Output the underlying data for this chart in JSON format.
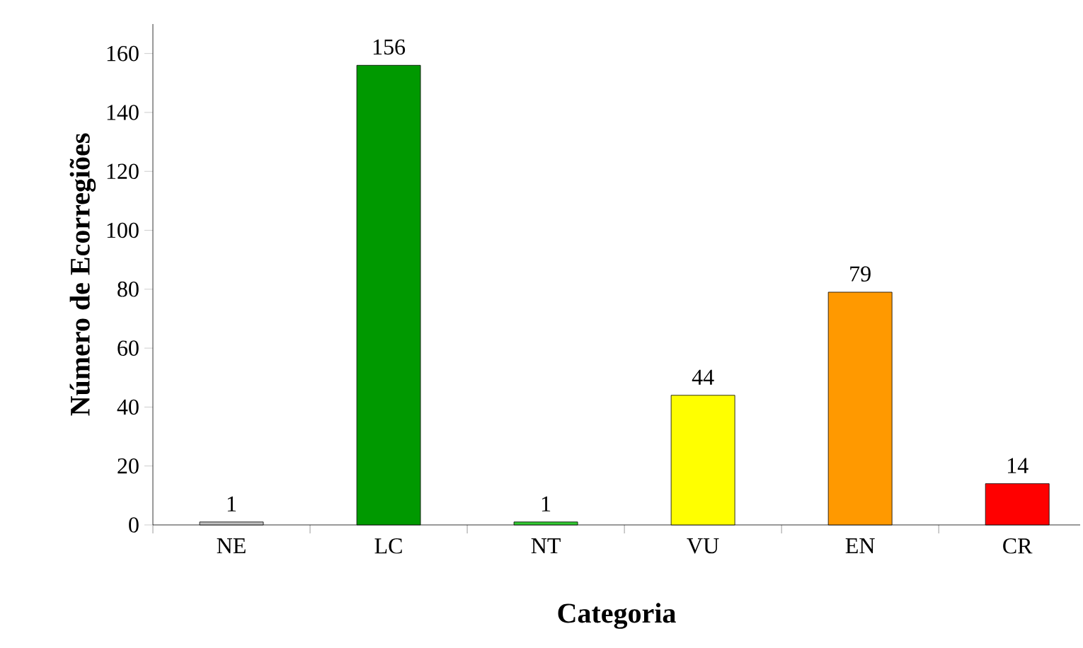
{
  "chart_data": {
    "type": "bar",
    "xlabel": "Categoria",
    "ylabel": "Número de Ecorregiões",
    "categories": [
      "NE",
      "LC",
      "NT",
      "VU",
      "EN",
      "CR"
    ],
    "values": [
      1,
      156,
      1,
      44,
      79,
      14
    ],
    "colors": [
      "#c0c0c0",
      "#009900",
      "#33cc33",
      "#ffff00",
      "#ff9900",
      "#ff0000"
    ],
    "ylim": [
      0,
      170
    ],
    "yticks": [
      0,
      20,
      40,
      60,
      80,
      100,
      120,
      140,
      160
    ],
    "data_labels": true
  }
}
